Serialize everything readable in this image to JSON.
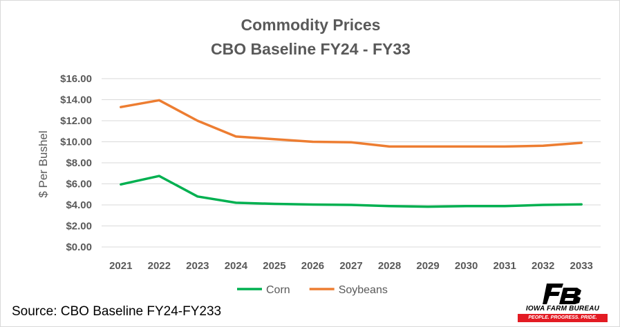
{
  "chart_data": {
    "type": "line",
    "title": "Commodity Prices",
    "subtitle": "CBO Baseline FY24 - FY33",
    "xlabel": "",
    "ylabel": "$ Per Bushel",
    "x": [
      "2021",
      "2022",
      "2023",
      "2024",
      "2025",
      "2026",
      "2027",
      "2028",
      "2029",
      "2030",
      "2031",
      "2032",
      "2033"
    ],
    "ylim": [
      0,
      16
    ],
    "yticks": [
      "$0.00",
      "$2.00",
      "$4.00",
      "$6.00",
      "$8.00",
      "$10.00",
      "$12.00",
      "$14.00",
      "$16.00"
    ],
    "grid": true,
    "legend_position": "bottom",
    "series": [
      {
        "name": "Corn",
        "color": "#00b050",
        "values": [
          5.95,
          6.75,
          4.8,
          4.2,
          4.1,
          4.03,
          4.0,
          3.88,
          3.83,
          3.88,
          3.88,
          4.0,
          4.05
        ]
      },
      {
        "name": "Soybeans",
        "color": "#ed7d31",
        "values": [
          13.3,
          13.95,
          12.0,
          10.5,
          10.25,
          10.0,
          9.95,
          9.55,
          9.55,
          9.55,
          9.55,
          9.62,
          9.9
        ]
      }
    ]
  },
  "source": "Source: CBO Baseline FY24-FY233",
  "logo": {
    "name": "IOWA FARM BUREAU",
    "tagline": "PEOPLE. PROGRESS. PRIDE.",
    "mark_color": "#000000",
    "accent_color": "#e31b23"
  }
}
